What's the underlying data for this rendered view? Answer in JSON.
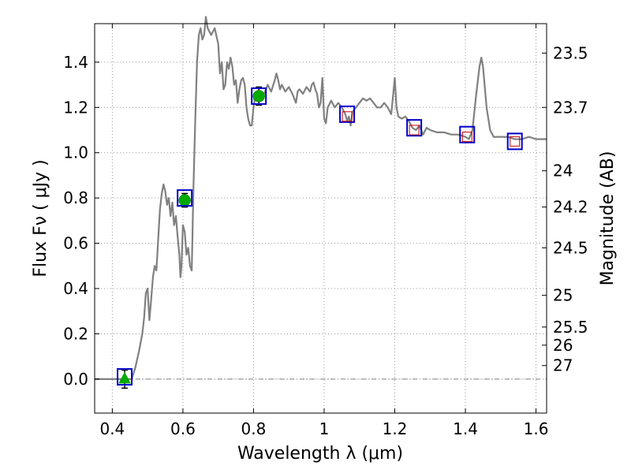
{
  "chart_data": {
    "type": "line",
    "xlabel": "Wavelength  λ (μm)",
    "ylabel": "Flux  Fν  ( μJy )",
    "ylabel_right": "Magnitude (AB)",
    "xlim": [
      0.35,
      1.63
    ],
    "ylim": [
      -0.15,
      1.57
    ],
    "grid": true,
    "x_ticks": [
      0.4,
      0.6,
      0.8,
      1.0,
      1.2,
      1.4,
      1.6
    ],
    "x_tick_labels": [
      "0.4",
      "0.6",
      "0.8",
      "1",
      "1.2",
      "1.4",
      "1.6"
    ],
    "y_ticks": [
      0.0,
      0.2,
      0.4,
      0.6,
      0.8,
      1.0,
      1.2,
      1.4
    ],
    "y_tick_labels": [
      "0.0",
      "0.2",
      "0.4",
      "0.6",
      "0.8",
      "1.0",
      "1.2",
      "1.4"
    ],
    "right_ticks": [
      {
        "flux": 1.44,
        "label": "23.5"
      },
      {
        "flux": 1.2,
        "label": "23.7"
      },
      {
        "flux": 0.92,
        "label": "24"
      },
      {
        "flux": 0.76,
        "label": "24.2"
      },
      {
        "flux": 0.58,
        "label": "24.5"
      },
      {
        "flux": 0.37,
        "label": "25"
      },
      {
        "flux": 0.23,
        "label": "25.5"
      },
      {
        "flux": 0.15,
        "label": "26"
      },
      {
        "flux": 0.06,
        "label": "27"
      }
    ],
    "colors": {
      "model_line": "#808080",
      "photometry_marker": "#00aa00",
      "model_box": "#0000cc",
      "prediction_box": "#cc0000",
      "error_bar": "#000000",
      "zero_line": "#808080",
      "grid": "#999999"
    },
    "series": [
      {
        "style": "model-spectrum",
        "points": [
          [
            0.35,
            0.0
          ],
          [
            0.44,
            0.0
          ],
          [
            0.455,
            0.0
          ],
          [
            0.465,
            0.05
          ],
          [
            0.475,
            0.12
          ],
          [
            0.485,
            0.2
          ],
          [
            0.49,
            0.27
          ],
          [
            0.495,
            0.38
          ],
          [
            0.5,
            0.4
          ],
          [
            0.505,
            0.26
          ],
          [
            0.51,
            0.35
          ],
          [
            0.515,
            0.45
          ],
          [
            0.52,
            0.5
          ],
          [
            0.525,
            0.48
          ],
          [
            0.53,
            0.62
          ],
          [
            0.535,
            0.75
          ],
          [
            0.54,
            0.82
          ],
          [
            0.545,
            0.86
          ],
          [
            0.55,
            0.83
          ],
          [
            0.555,
            0.77
          ],
          [
            0.56,
            0.8
          ],
          [
            0.565,
            0.72
          ],
          [
            0.57,
            0.78
          ],
          [
            0.575,
            0.68
          ],
          [
            0.58,
            0.72
          ],
          [
            0.585,
            0.63
          ],
          [
            0.59,
            0.55
          ],
          [
            0.593,
            0.45
          ],
          [
            0.596,
            0.5
          ],
          [
            0.6,
            0.68
          ],
          [
            0.605,
            0.65
          ],
          [
            0.61,
            0.55
          ],
          [
            0.615,
            0.58
          ],
          [
            0.62,
            0.5
          ],
          [
            0.625,
            0.48
          ],
          [
            0.63,
            0.85
          ],
          [
            0.635,
            1.15
          ],
          [
            0.64,
            1.4
          ],
          [
            0.645,
            1.52
          ],
          [
            0.65,
            1.55
          ],
          [
            0.655,
            1.5
          ],
          [
            0.66,
            1.52
          ],
          [
            0.665,
            1.6
          ],
          [
            0.67,
            1.55
          ],
          [
            0.68,
            1.52
          ],
          [
            0.69,
            1.55
          ],
          [
            0.7,
            1.48
          ],
          [
            0.705,
            1.35
          ],
          [
            0.71,
            1.4
          ],
          [
            0.715,
            1.28
          ],
          [
            0.72,
            1.3
          ],
          [
            0.725,
            1.4
          ],
          [
            0.73,
            1.37
          ],
          [
            0.735,
            1.42
          ],
          [
            0.74,
            1.38
          ],
          [
            0.745,
            1.3
          ],
          [
            0.75,
            1.32
          ],
          [
            0.755,
            1.22
          ],
          [
            0.76,
            1.28
          ],
          [
            0.765,
            1.32
          ],
          [
            0.77,
            1.33
          ],
          [
            0.775,
            1.3
          ],
          [
            0.78,
            1.2
          ],
          [
            0.785,
            1.15
          ],
          [
            0.79,
            1.12
          ],
          [
            0.795,
            1.12
          ],
          [
            0.8,
            1.2
          ],
          [
            0.805,
            1.25
          ],
          [
            0.81,
            1.27
          ],
          [
            0.82,
            1.25
          ],
          [
            0.83,
            1.26
          ],
          [
            0.84,
            1.3
          ],
          [
            0.85,
            1.27
          ],
          [
            0.86,
            1.32
          ],
          [
            0.865,
            1.35
          ],
          [
            0.87,
            1.32
          ],
          [
            0.875,
            1.28
          ],
          [
            0.88,
            1.3
          ],
          [
            0.89,
            1.27
          ],
          [
            0.9,
            1.29
          ],
          [
            0.91,
            1.26
          ],
          [
            0.92,
            1.22
          ],
          [
            0.925,
            1.27
          ],
          [
            0.93,
            1.28
          ],
          [
            0.94,
            1.26
          ],
          [
            0.95,
            1.29
          ],
          [
            0.96,
            1.27
          ],
          [
            0.965,
            1.3
          ],
          [
            0.97,
            1.31
          ],
          [
            0.975,
            1.28
          ],
          [
            0.98,
            1.26
          ],
          [
            0.985,
            1.2
          ],
          [
            0.99,
            1.22
          ],
          [
            0.995,
            1.33
          ],
          [
            1.0,
            1.15
          ],
          [
            1.005,
            1.13
          ],
          [
            1.01,
            1.2
          ],
          [
            1.02,
            1.23
          ],
          [
            1.03,
            1.2
          ],
          [
            1.04,
            1.22
          ],
          [
            1.05,
            1.2
          ],
          [
            1.06,
            1.17
          ],
          [
            1.065,
            1.14
          ],
          [
            1.07,
            1.16
          ],
          [
            1.075,
            1.12
          ],
          [
            1.08,
            1.18
          ],
          [
            1.09,
            1.2
          ],
          [
            1.1,
            1.22
          ],
          [
            1.11,
            1.24
          ],
          [
            1.12,
            1.23
          ],
          [
            1.13,
            1.24
          ],
          [
            1.14,
            1.22
          ],
          [
            1.15,
            1.2
          ],
          [
            1.16,
            1.2
          ],
          [
            1.17,
            1.22
          ],
          [
            1.18,
            1.2
          ],
          [
            1.19,
            1.17
          ],
          [
            1.195,
            1.25
          ],
          [
            1.2,
            1.33
          ],
          [
            1.205,
            1.2
          ],
          [
            1.21,
            1.16
          ],
          [
            1.22,
            1.15
          ],
          [
            1.23,
            1.16
          ],
          [
            1.24,
            1.14
          ],
          [
            1.25,
            1.11
          ],
          [
            1.26,
            1.1
          ],
          [
            1.27,
            1.12
          ],
          [
            1.28,
            1.08
          ],
          [
            1.29,
            1.11
          ],
          [
            1.3,
            1.1
          ],
          [
            1.32,
            1.09
          ],
          [
            1.34,
            1.09
          ],
          [
            1.36,
            1.08
          ],
          [
            1.38,
            1.08
          ],
          [
            1.4,
            1.07
          ],
          [
            1.41,
            1.06
          ],
          [
            1.42,
            1.1
          ],
          [
            1.43,
            1.25
          ],
          [
            1.44,
            1.38
          ],
          [
            1.445,
            1.42
          ],
          [
            1.45,
            1.38
          ],
          [
            1.46,
            1.2
          ],
          [
            1.47,
            1.1
          ],
          [
            1.48,
            1.07
          ],
          [
            1.5,
            1.07
          ],
          [
            1.52,
            1.07
          ],
          [
            1.54,
            1.06
          ],
          [
            1.56,
            1.06
          ],
          [
            1.58,
            1.07
          ],
          [
            1.6,
            1.06
          ],
          [
            1.63,
            1.06
          ]
        ]
      },
      {
        "style": "observed-photometry",
        "points": [
          {
            "x": 0.435,
            "y": 0.0,
            "err": 0.04,
            "marker": "triangle"
          },
          {
            "x": 0.605,
            "y": 0.79,
            "err": 0.03,
            "marker": "circle"
          },
          {
            "x": 0.815,
            "y": 1.25,
            "err": 0.04,
            "marker": "circle"
          }
        ]
      },
      {
        "style": "model-band-flux",
        "points": [
          {
            "x": 0.435,
            "y": 0.01
          },
          {
            "x": 0.605,
            "y": 0.8
          },
          {
            "x": 0.815,
            "y": 1.25
          },
          {
            "x": 1.065,
            "y": 1.17
          },
          {
            "x": 1.255,
            "y": 1.11
          },
          {
            "x": 1.405,
            "y": 1.08
          },
          {
            "x": 1.54,
            "y": 1.05
          }
        ]
      },
      {
        "style": "predicted-band-flux",
        "points": [
          {
            "x": 1.065,
            "y": 1.16
          },
          {
            "x": 1.255,
            "y": 1.1
          },
          {
            "x": 1.405,
            "y": 1.07
          },
          {
            "x": 1.54,
            "y": 1.05
          }
        ]
      }
    ]
  }
}
